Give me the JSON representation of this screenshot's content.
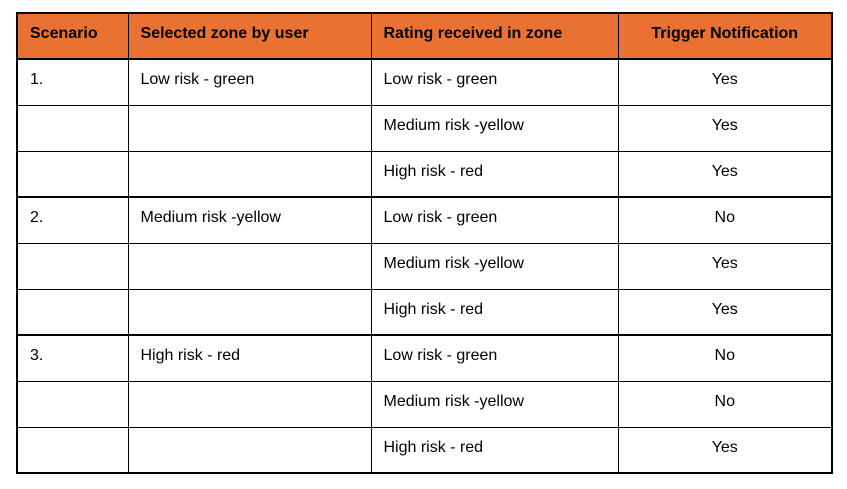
{
  "colors": {
    "header_bg": "#E97132",
    "border": "#000000",
    "text": "#000000",
    "page_bg": "#FFFFFF"
  },
  "table": {
    "headers": {
      "scenario": "Scenario",
      "selected_zone": "Selected zone by user",
      "rating": "Rating received in zone",
      "trigger": "Trigger Notification"
    },
    "rows": [
      {
        "scenario": "1.",
        "zone": "Low risk - green",
        "rating": "Low risk - green",
        "trigger": "Yes"
      },
      {
        "scenario": "",
        "zone": "",
        "rating": "Medium risk -yellow",
        "trigger": "Yes"
      },
      {
        "scenario": "",
        "zone": "",
        "rating": "High risk - red",
        "trigger": "Yes"
      },
      {
        "scenario": "2.",
        "zone": "Medium risk -yellow",
        "rating": "Low risk - green",
        "trigger": "No"
      },
      {
        "scenario": "",
        "zone": "",
        "rating": "Medium risk -yellow",
        "trigger": "Yes"
      },
      {
        "scenario": "",
        "zone": "",
        "rating": "High risk - red",
        "trigger": "Yes"
      },
      {
        "scenario": "3.",
        "zone": "High risk - red",
        "rating": "Low risk - green",
        "trigger": "No"
      },
      {
        "scenario": "",
        "zone": "",
        "rating": "Medium risk -yellow",
        "trigger": "No"
      },
      {
        "scenario": "",
        "zone": "",
        "rating": "High risk - red",
        "trigger": "Yes"
      }
    ]
  }
}
